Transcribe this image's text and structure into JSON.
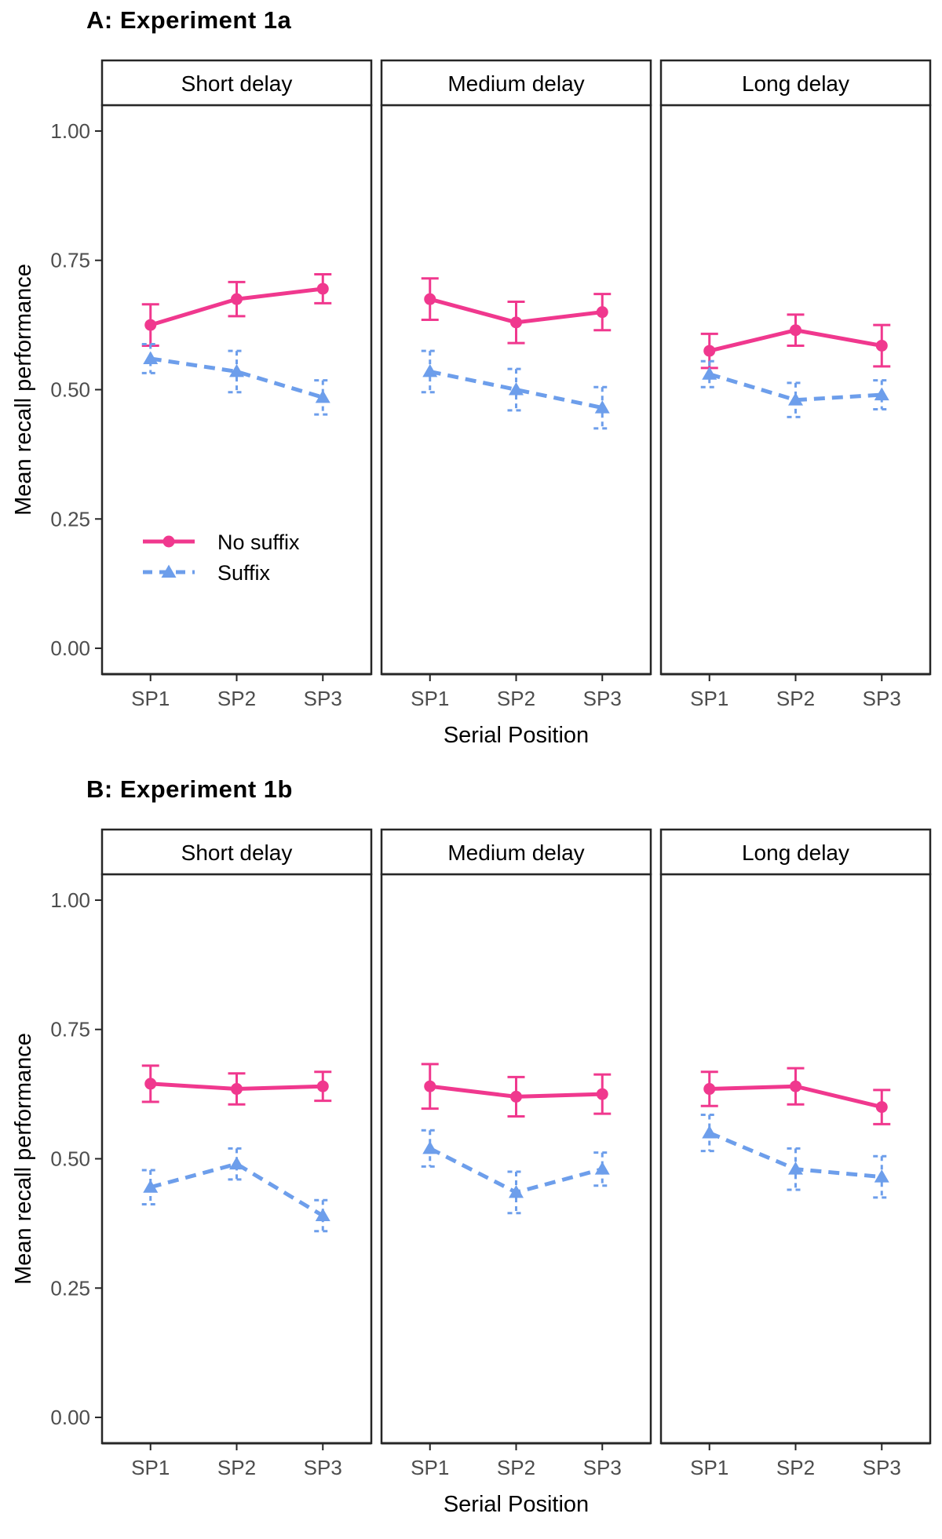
{
  "chart_data": [
    {
      "type": "line",
      "title": "A: Experiment 1a",
      "xlabel": "Serial Position",
      "ylabel": "Mean recall performance",
      "facets": [
        "Short delay",
        "Medium delay",
        "Long delay"
      ],
      "categories": [
        "SP1",
        "SP2",
        "SP3"
      ],
      "y_ticks": [
        0.0,
        0.25,
        0.5,
        0.75,
        1.0
      ],
      "y_tick_labels": [
        "0.00",
        "0.25",
        "0.50",
        "0.75",
        "1.00"
      ],
      "ylim": [
        -0.05,
        1.05
      ],
      "grid": false,
      "show_legend": true,
      "legend_position": "inside-first-facet",
      "series": [
        {
          "name": "No suffix",
          "color": "#F0388E",
          "marker": "circle",
          "linestyle": "solid",
          "facet_values": [
            [
              0.625,
              0.675,
              0.695
            ],
            [
              0.675,
              0.63,
              0.65
            ],
            [
              0.575,
              0.615,
              0.585
            ]
          ],
          "facet_errors": [
            [
              0.04,
              0.033,
              0.028
            ],
            [
              0.04,
              0.04,
              0.035
            ],
            [
              0.033,
              0.03,
              0.04
            ]
          ]
        },
        {
          "name": "Suffix",
          "color": "#6D9EEB",
          "marker": "triangle",
          "linestyle": "dashed",
          "facet_values": [
            [
              0.56,
              0.535,
              0.485
            ],
            [
              0.535,
              0.5,
              0.465
            ],
            [
              0.53,
              0.48,
              0.49
            ]
          ],
          "facet_errors": [
            [
              0.028,
              0.04,
              0.033
            ],
            [
              0.04,
              0.04,
              0.04
            ],
            [
              0.025,
              0.033,
              0.028
            ]
          ]
        }
      ]
    },
    {
      "type": "line",
      "title": "B: Experiment 1b",
      "xlabel": "Serial Position",
      "ylabel": "Mean recall performance",
      "facets": [
        "Short delay",
        "Medium delay",
        "Long delay"
      ],
      "categories": [
        "SP1",
        "SP2",
        "SP3"
      ],
      "y_ticks": [
        0.0,
        0.25,
        0.5,
        0.75,
        1.0
      ],
      "y_tick_labels": [
        "0.00",
        "0.25",
        "0.50",
        "0.75",
        "1.00"
      ],
      "ylim": [
        -0.05,
        1.05
      ],
      "grid": false,
      "show_legend": false,
      "legend_position": "none",
      "series": [
        {
          "name": "No suffix",
          "color": "#F0388E",
          "marker": "circle",
          "linestyle": "solid",
          "facet_values": [
            [
              0.645,
              0.635,
              0.64
            ],
            [
              0.64,
              0.62,
              0.625
            ],
            [
              0.635,
              0.64,
              0.6
            ]
          ],
          "facet_errors": [
            [
              0.035,
              0.03,
              0.028
            ],
            [
              0.043,
              0.038,
              0.038
            ],
            [
              0.033,
              0.035,
              0.033
            ]
          ]
        },
        {
          "name": "Suffix",
          "color": "#6D9EEB",
          "marker": "triangle",
          "linestyle": "dashed",
          "facet_values": [
            [
              0.445,
              0.49,
              0.39
            ],
            [
              0.52,
              0.435,
              0.48
            ],
            [
              0.55,
              0.48,
              0.465
            ]
          ],
          "facet_errors": [
            [
              0.033,
              0.03,
              0.03
            ],
            [
              0.035,
              0.04,
              0.032
            ],
            [
              0.035,
              0.04,
              0.04
            ]
          ]
        }
      ]
    }
  ],
  "style": {
    "border_color": "#262626",
    "tick_text_color": "#4d4d4d",
    "facet_text_color": "#000000",
    "pink": "#F0388E",
    "blue": "#6D9EEB",
    "background": "#ffffff"
  }
}
